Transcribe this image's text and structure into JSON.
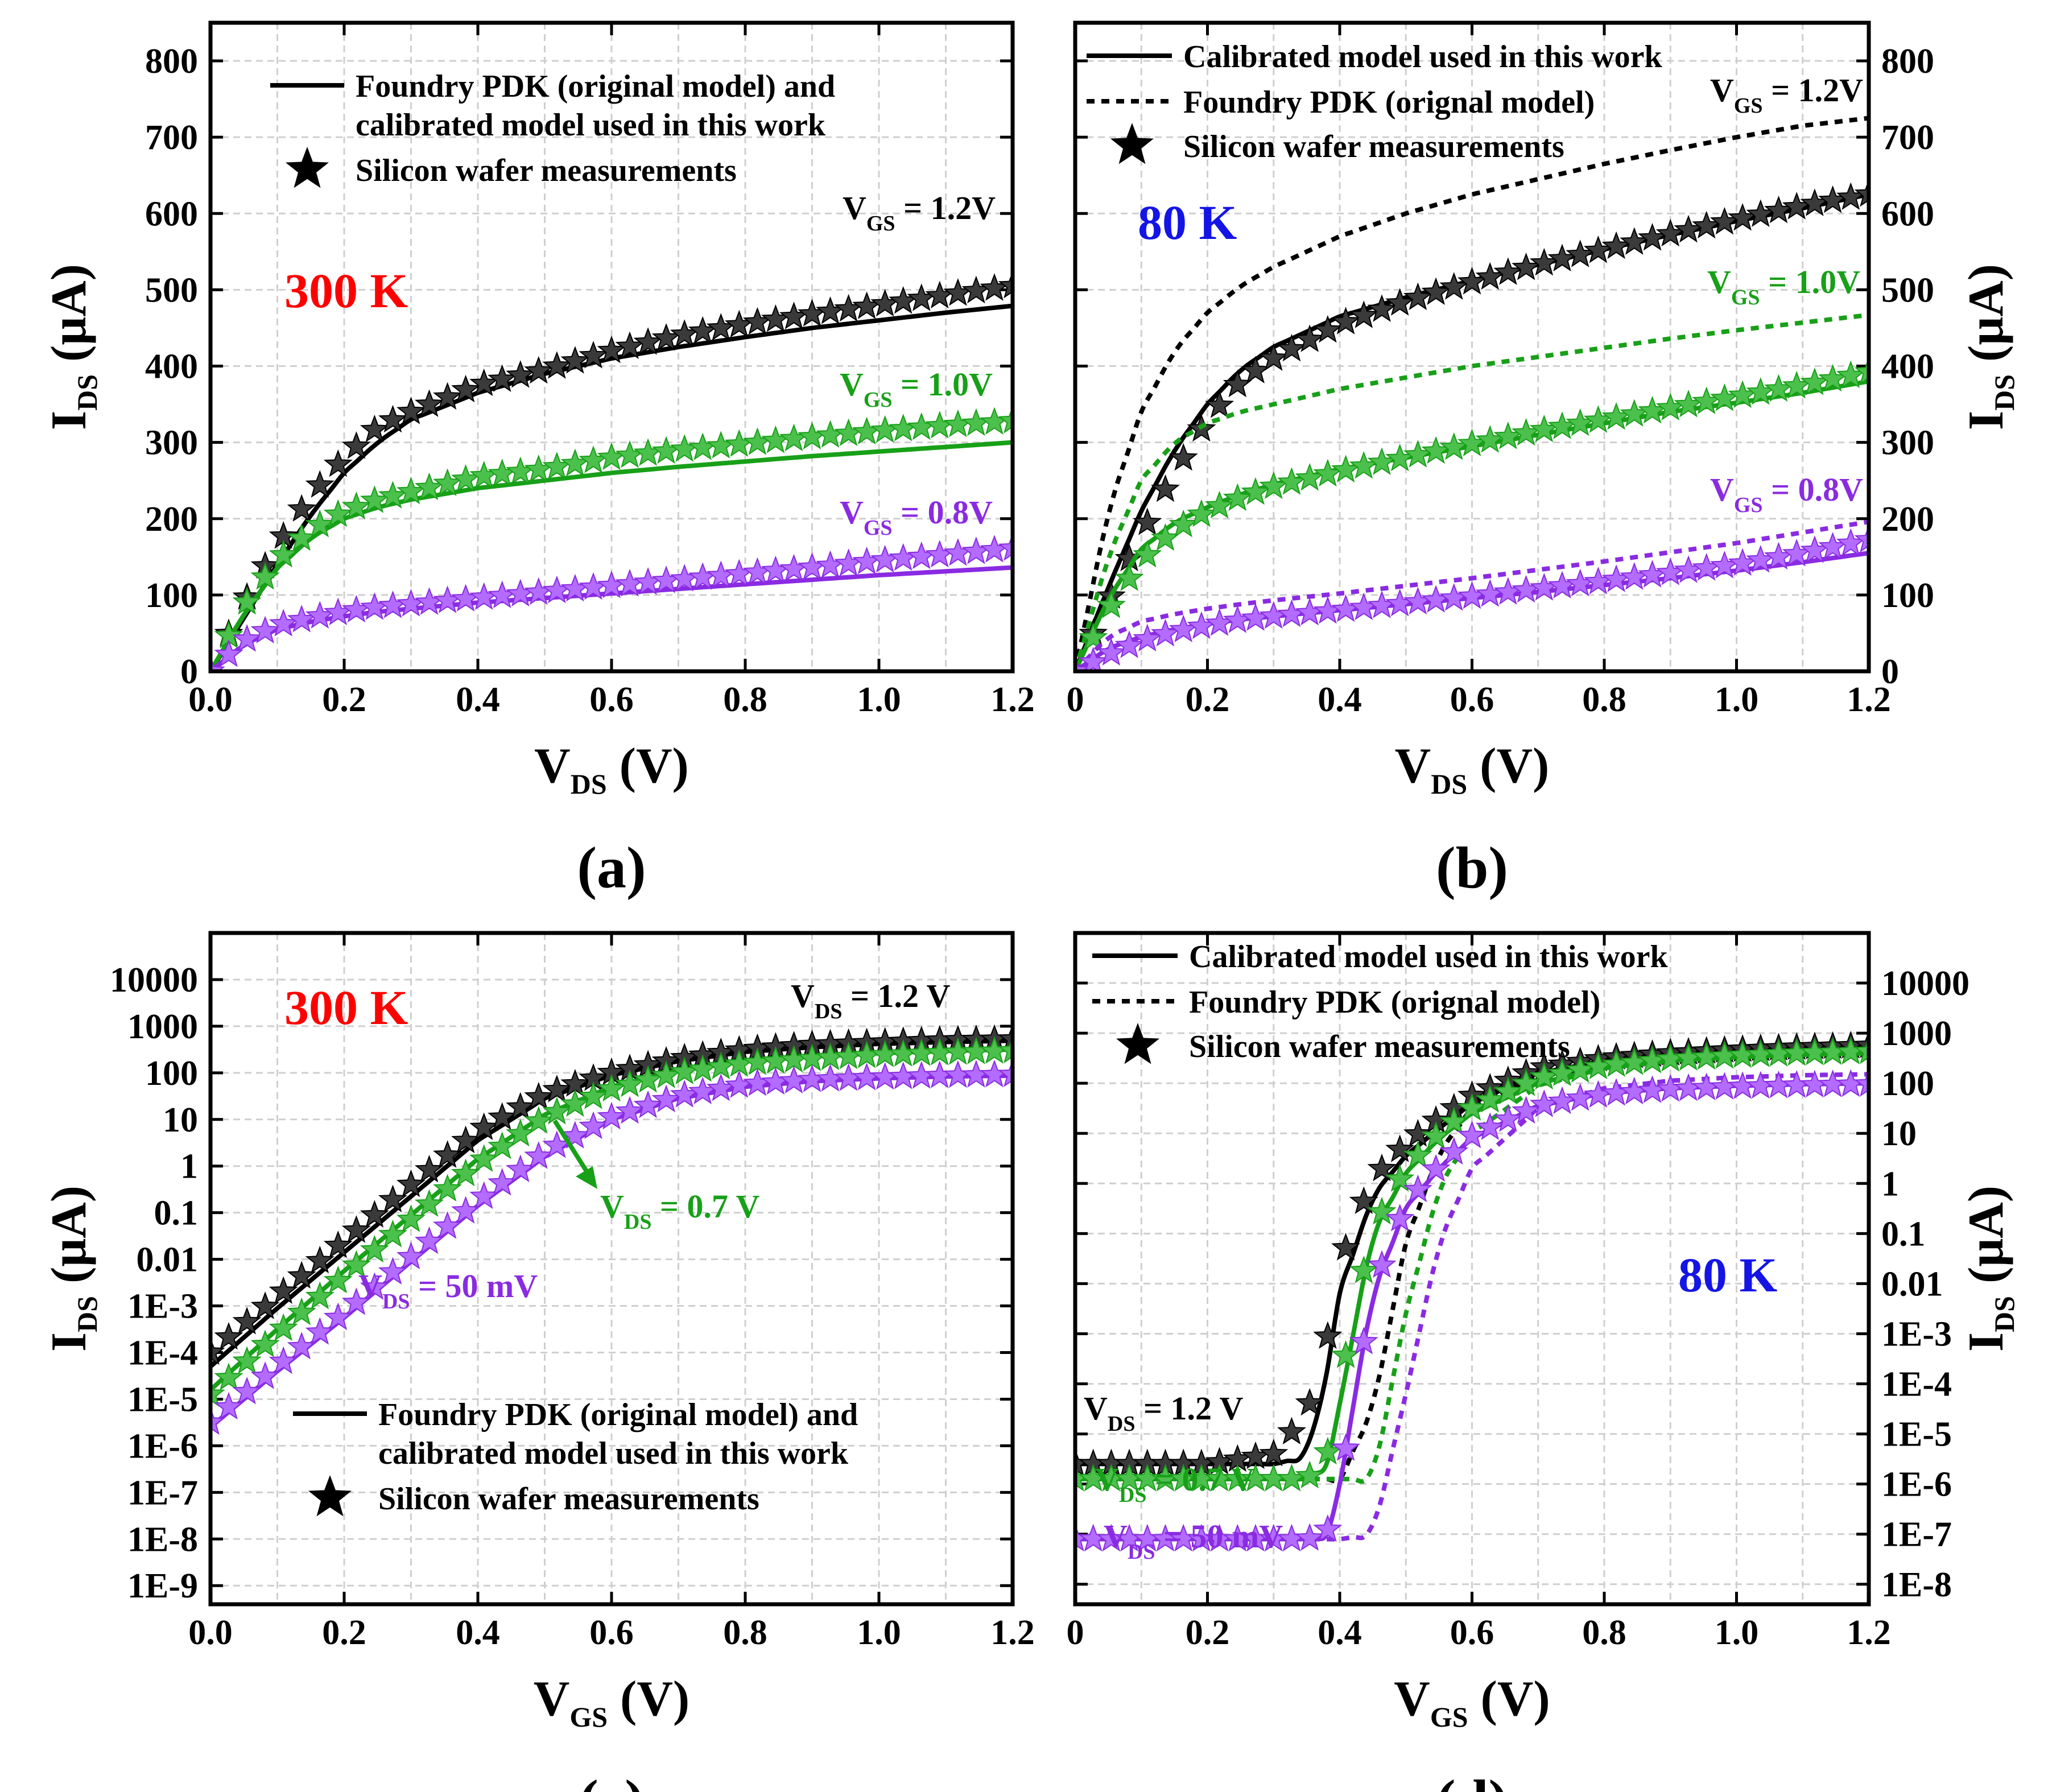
{
  "figure": {
    "colors": {
      "vgs12": "#000000",
      "vgs10": "#18a018",
      "vgs08": "#8a2be2",
      "temp300": "#ff0000",
      "temp80": "#1414e6",
      "star_black": "#3a3a3a",
      "star_green": "#4cc04c",
      "star_purple": "#b36cff"
    },
    "legend_ac": {
      "line": "Foundry PDK (original model) and",
      "line2": "calibrated model used in this work",
      "star": "Silicon wafer measurements"
    },
    "legend_bd": {
      "solid": "Calibrated model used in this work",
      "dotted": "Foundry PDK (orignal model)",
      "star": "Silicon wafer measurements"
    }
  },
  "chart_data": [
    {
      "id": "a",
      "type": "line",
      "panel_label": "(a)",
      "temperature": "300 K",
      "xlabel_main": "V",
      "xlabel_sub": "DS",
      "xlabel_unit": " (V)",
      "ylabel_main": "I",
      "ylabel_sub": "DS",
      "ylabel_unit": " (μA)",
      "xlim": [
        0,
        1.2
      ],
      "ylim": [
        0,
        850
      ],
      "xticks": [
        "0.0",
        "0.2",
        "0.4",
        "0.6",
        "0.8",
        "1.0",
        "1.2"
      ],
      "yticks": [
        "0",
        "100",
        "200",
        "300",
        "400",
        "500",
        "600",
        "700",
        "800"
      ],
      "x": [
        0,
        0.05,
        0.1,
        0.15,
        0.2,
        0.25,
        0.3,
        0.4,
        0.5,
        0.6,
        0.7,
        0.8,
        0.9,
        1.0,
        1.1,
        1.2
      ],
      "series": [
        {
          "name": "VGS = 1.2V model",
          "color": "vgs12",
          "style": "solid",
          "values": [
            0,
            70,
            140,
            205,
            260,
            300,
            330,
            365,
            390,
            410,
            425,
            438,
            450,
            460,
            470,
            479
          ]
        },
        {
          "name": "VGS = 1.2V measured",
          "color": "vgs12",
          "style": "stars",
          "values": [
            0,
            90,
            165,
            230,
            280,
            320,
            340,
            375,
            395,
            420,
            440,
            455,
            468,
            480,
            493,
            505
          ]
        },
        {
          "name": "VGS = 1.0V model",
          "color": "vgs10",
          "style": "solid",
          "values": [
            0,
            75,
            135,
            175,
            200,
            215,
            225,
            240,
            250,
            260,
            268,
            275,
            282,
            288,
            294,
            300
          ]
        },
        {
          "name": "VGS = 1.0V measured",
          "color": "vgs10",
          "style": "stars",
          "values": [
            0,
            85,
            145,
            185,
            210,
            225,
            235,
            255,
            265,
            280,
            290,
            298,
            307,
            315,
            322,
            328
          ]
        },
        {
          "name": "VGS = 0.8V model",
          "color": "vgs08",
          "style": "solid",
          "values": [
            0,
            35,
            55,
            65,
            72,
            78,
            82,
            90,
            96,
            102,
            108,
            114,
            120,
            126,
            131,
            136
          ]
        },
        {
          "name": "VGS = 0.8V measured",
          "color": "vgs08",
          "style": "stars",
          "values": [
            0,
            40,
            60,
            70,
            78,
            84,
            88,
            96,
            104,
            112,
            120,
            128,
            136,
            145,
            153,
            161
          ]
        }
      ],
      "annotations": [
        {
          "main": "V",
          "sub": "GS",
          "rest": " = 1.2V",
          "color": "vgs12"
        },
        {
          "main": "V",
          "sub": "GS",
          "rest": " = 1.0V",
          "color": "vgs10"
        },
        {
          "main": "V",
          "sub": "GS",
          "rest": " = 0.8V",
          "color": "vgs08"
        }
      ]
    },
    {
      "id": "b",
      "type": "line",
      "panel_label": "(b)",
      "temperature": "80 K",
      "xlabel_main": "V",
      "xlabel_sub": "DS",
      "xlabel_unit": " (V)",
      "ylabel_main": "I",
      "ylabel_sub": "DS",
      "ylabel_unit": " (μA)",
      "xlim": [
        0,
        1.2
      ],
      "ylim": [
        0,
        850
      ],
      "xticks": [
        "0",
        "0.2",
        "0.4",
        "0.6",
        "0.8",
        "1.0",
        "1.2"
      ],
      "yticks": [
        "0",
        "100",
        "200",
        "300",
        "400",
        "500",
        "600",
        "700",
        "800"
      ],
      "x": [
        0,
        0.05,
        0.1,
        0.15,
        0.2,
        0.25,
        0.3,
        0.4,
        0.5,
        0.6,
        0.7,
        0.8,
        0.9,
        1.0,
        1.1,
        1.2
      ],
      "series": [
        {
          "name": "VGS = 1.2V calibrated",
          "color": "vgs12",
          "style": "solid",
          "values": [
            0,
            110,
            210,
            290,
            350,
            395,
            425,
            465,
            490,
            512,
            533,
            553,
            572,
            590,
            607,
            625
          ]
        },
        {
          "name": "VGS = 1.2V foundry",
          "color": "vgs12",
          "style": "dotted",
          "values": [
            0,
            210,
            340,
            420,
            470,
            505,
            530,
            570,
            600,
            625,
            645,
            665,
            683,
            700,
            715,
            725
          ]
        },
        {
          "name": "VGS = 1.2V measured",
          "color": "vgs12",
          "style": "stars",
          "values": [
            0,
            90,
            180,
            260,
            330,
            380,
            410,
            455,
            485,
            510,
            533,
            553,
            573,
            592,
            610,
            625
          ]
        },
        {
          "name": "VGS = 1.0V calibrated",
          "color": "vgs10",
          "style": "solid",
          "values": [
            0,
            95,
            160,
            195,
            215,
            232,
            245,
            265,
            280,
            295,
            310,
            325,
            340,
            352,
            365,
            380
          ]
        },
        {
          "name": "VGS = 1.0V foundry",
          "color": "vgs10",
          "style": "dotted",
          "values": [
            0,
            150,
            250,
            300,
            325,
            340,
            350,
            370,
            385,
            400,
            412,
            424,
            436,
            447,
            457,
            467
          ]
        },
        {
          "name": "VGS = 1.0V measured",
          "color": "vgs10",
          "style": "stars",
          "values": [
            0,
            80,
            145,
            185,
            210,
            228,
            242,
            262,
            280,
            298,
            315,
            330,
            345,
            360,
            375,
            392
          ]
        },
        {
          "name": "VGS = 0.8V calibrated",
          "color": "vgs08",
          "style": "solid",
          "values": [
            0,
            30,
            45,
            55,
            62,
            68,
            72,
            80,
            88,
            96,
            104,
            113,
            122,
            132,
            143,
            155
          ]
        },
        {
          "name": "VGS = 0.8V foundry",
          "color": "vgs08",
          "style": "dotted",
          "values": [
            0,
            45,
            65,
            75,
            82,
            88,
            93,
            102,
            112,
            122,
            133,
            144,
            156,
            168,
            182,
            196
          ]
        },
        {
          "name": "VGS = 0.8V measured",
          "color": "vgs08",
          "style": "stars",
          "values": [
            0,
            22,
            40,
            52,
            60,
            67,
            72,
            80,
            89,
            98,
            108,
            118,
            129,
            140,
            155,
            172
          ]
        }
      ],
      "annotations": [
        {
          "main": "V",
          "sub": "GS",
          "rest": " = 1.2V",
          "color": "vgs12"
        },
        {
          "main": "V",
          "sub": "GS",
          "rest": " = 1.0V",
          "color": "vgs10"
        },
        {
          "main": "V",
          "sub": "GS",
          "rest": " = 0.8V",
          "color": "vgs08"
        }
      ]
    },
    {
      "id": "c",
      "type": "line",
      "panel_label": "(c)",
      "temperature": "300 K",
      "yscale": "log",
      "xlabel_main": "V",
      "xlabel_sub": "GS",
      "xlabel_unit": " (V)",
      "ylabel_main": "I",
      "ylabel_sub": "DS",
      "ylabel_unit": " (μA)",
      "xlim": [
        0,
        1.2
      ],
      "ylim_log10": [
        -9.4,
        5.0
      ],
      "xticks": [
        "0.0",
        "0.2",
        "0.4",
        "0.6",
        "0.8",
        "1.0",
        "1.2"
      ],
      "yticks": [
        "1E-9",
        "1E-8",
        "1E-7",
        "1E-6",
        "1E-5",
        "1E-4",
        "1E-3",
        "0.01",
        "0.1",
        "1",
        "10",
        "100",
        "1000",
        "10000"
      ],
      "x": [
        0,
        0.1,
        0.2,
        0.3,
        0.4,
        0.5,
        0.6,
        0.7,
        0.8,
        0.9,
        1.0,
        1.1,
        1.2
      ],
      "series": [
        {
          "name": "VDS = 1.2 V model",
          "color": "vgs12",
          "style": "solid",
          "log10_values": [
            -4.3,
            -3.05,
            -1.85,
            -0.65,
            0.55,
            1.45,
            1.95,
            2.25,
            2.45,
            2.55,
            2.62,
            2.66,
            2.69
          ]
        },
        {
          "name": "VDS = 1.2 V measured",
          "color": "vgs12",
          "style": "stars",
          "log10_values": [
            -4.0,
            -2.8,
            -1.6,
            -0.4,
            0.75,
            1.55,
            2.0,
            2.3,
            2.5,
            2.6,
            2.65,
            2.7,
            2.72
          ]
        },
        {
          "name": "VDS = 0.7 V model",
          "color": "vgs10",
          "style": "solid",
          "log10_values": [
            -4.8,
            -3.5,
            -2.25,
            -1.05,
            0.15,
            1.1,
            1.7,
            2.05,
            2.25,
            2.35,
            2.42,
            2.47,
            2.5
          ]
        },
        {
          "name": "VDS = 0.7 V measured",
          "color": "vgs10",
          "style": "stars",
          "log10_values": [
            -4.9,
            -3.6,
            -2.35,
            -1.15,
            0.05,
            1.05,
            1.65,
            2.0,
            2.2,
            2.3,
            2.38,
            2.43,
            2.47
          ]
        },
        {
          "name": "VDS = 50 mV model",
          "color": "vgs08",
          "style": "solid",
          "log10_values": [
            -5.6,
            -4.4,
            -3.25,
            -2.05,
            -0.85,
            0.2,
            1.0,
            1.45,
            1.7,
            1.82,
            1.88,
            1.92,
            1.94
          ]
        },
        {
          "name": "VDS = 50 mV measured",
          "color": "vgs08",
          "style": "stars",
          "log10_values": [
            -5.5,
            -4.3,
            -3.15,
            -1.95,
            -0.75,
            0.3,
            1.05,
            1.5,
            1.75,
            1.85,
            1.9,
            1.94,
            1.96
          ]
        }
      ],
      "annotations": [
        {
          "main": "V",
          "sub": "DS",
          "rest": " = 1.2 V",
          "color": "vgs12"
        },
        {
          "main": "V",
          "sub": "DS",
          "rest": " = 0.7 V",
          "color": "vgs10"
        },
        {
          "main": "V",
          "sub": "DS",
          "rest": " = 50 mV",
          "color": "vgs08"
        }
      ]
    },
    {
      "id": "d",
      "type": "line",
      "panel_label": "(d)",
      "temperature": "80 K",
      "yscale": "log",
      "xlabel_main": "V",
      "xlabel_sub": "GS",
      "xlabel_unit": " (V)",
      "ylabel_main": "I",
      "ylabel_sub": "DS",
      "ylabel_unit": " (μA)",
      "xlim": [
        0,
        1.2
      ],
      "ylim_log10": [
        -8.4,
        5.0
      ],
      "xticks": [
        "0",
        "0.2",
        "0.4",
        "0.6",
        "0.8",
        "1.0",
        "1.2"
      ],
      "yticks": [
        "1E-8",
        "1E-7",
        "1E-6",
        "1E-5",
        "1E-4",
        "1E-3",
        "0.01",
        "0.1",
        "1",
        "10",
        "100",
        "1000",
        "10000"
      ],
      "x": [
        0,
        0.1,
        0.2,
        0.3,
        0.35,
        0.38,
        0.4,
        0.45,
        0.5,
        0.55,
        0.6,
        0.7,
        0.8,
        0.9,
        1.0,
        1.1,
        1.2
      ],
      "series": [
        {
          "name": "VDS = 1.2 V calibrated",
          "color": "vgs12",
          "style": "solid",
          "log10_values": [
            -5.6,
            -5.6,
            -5.6,
            -5.6,
            -5.45,
            -3.8,
            -2.2,
            -0.25,
            0.55,
            1.1,
            1.6,
            2.2,
            2.45,
            2.58,
            2.65,
            2.7,
            2.73
          ]
        },
        {
          "name": "VDS = 1.2 V foundry",
          "color": "vgs12",
          "style": "dotted",
          "log10_values": [
            -5.9,
            -5.9,
            -5.9,
            -5.9,
            -5.9,
            -5.9,
            -5.9,
            -4.5,
            -1.2,
            0.6,
            1.5,
            2.15,
            2.45,
            2.58,
            2.65,
            2.7,
            2.73
          ]
        },
        {
          "name": "VDS = 1.2 V measured",
          "color": "vgs12",
          "style": "stars",
          "log10_values": [
            -5.6,
            -5.6,
            -5.6,
            -5.4,
            -4.6,
            -3.2,
            -1.6,
            0.1,
            0.8,
            1.3,
            1.75,
            2.3,
            2.5,
            2.6,
            2.67,
            2.72,
            2.75
          ]
        },
        {
          "name": "VDS = 0.7 V calibrated",
          "color": "vgs10",
          "style": "solid",
          "log10_values": [
            -5.9,
            -5.9,
            -5.9,
            -5.9,
            -5.9,
            -5.6,
            -4.4,
            -1.0,
            0.2,
            0.9,
            1.4,
            2.0,
            2.3,
            2.45,
            2.52,
            2.57,
            2.6
          ]
        },
        {
          "name": "VDS = 0.7 V foundry",
          "color": "vgs10",
          "style": "dotted",
          "log10_values": [
            -5.9,
            -5.9,
            -5.9,
            -5.9,
            -5.9,
            -5.9,
            -5.9,
            -5.9,
            -2.6,
            -0.1,
            1.0,
            1.95,
            2.3,
            2.45,
            2.52,
            2.57,
            2.6
          ]
        },
        {
          "name": "VDS = 0.7 V measured",
          "color": "vgs10",
          "style": "stars",
          "log10_values": [
            -5.9,
            -5.9,
            -5.9,
            -5.9,
            -5.9,
            -5.5,
            -4.0,
            -0.9,
            0.3,
            1.0,
            1.5,
            2.1,
            2.35,
            2.48,
            2.55,
            2.6,
            2.63
          ]
        },
        {
          "name": "VDS = 50 mV calibrated",
          "color": "vgs08",
          "style": "solid",
          "log10_values": [
            -7.1,
            -7.1,
            -7.1,
            -7.1,
            -7.1,
            -7.0,
            -6.0,
            -2.2,
            -0.5,
            0.3,
            0.9,
            1.55,
            1.8,
            1.9,
            1.95,
            1.98,
            2.0
          ]
        },
        {
          "name": "VDS = 50 mV foundry",
          "color": "vgs08",
          "style": "dotted",
          "log10_values": [
            -7.1,
            -7.1,
            -7.1,
            -7.1,
            -7.1,
            -7.1,
            -7.1,
            -7.0,
            -4.2,
            -1.2,
            0.3,
            1.5,
            1.9,
            2.05,
            2.12,
            2.16,
            2.18
          ]
        },
        {
          "name": "VDS = 50 mV measured",
          "color": "vgs08",
          "style": "stars",
          "log10_values": [
            -7.1,
            -7.1,
            -7.1,
            -7.1,
            -7.1,
            -7.0,
            -6.0,
            -2.1,
            -0.4,
            0.35,
            0.95,
            1.55,
            1.78,
            1.88,
            1.93,
            1.96,
            1.98
          ]
        }
      ],
      "annotations": [
        {
          "main": "V",
          "sub": "DS",
          "rest": " = 1.2 V",
          "color": "vgs12"
        },
        {
          "main": "V",
          "sub": "DS",
          "rest": " = 0.7 V",
          "color": "vgs10"
        },
        {
          "main": "V",
          "sub": "DS",
          "rest": " = 50 mV",
          "color": "vgs08"
        }
      ]
    }
  ]
}
